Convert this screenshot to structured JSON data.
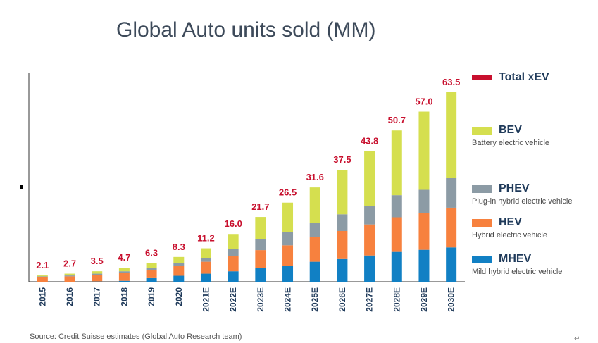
{
  "title": "Global Auto units sold (MM)",
  "source": "Source: Credit Suisse estimates (Global Auto Research team)",
  "return_mark": "↵",
  "legend": [
    {
      "name": "Total xEV",
      "desc": "",
      "color": "#c8102e"
    },
    {
      "name": "BEV",
      "desc": "Battery electric vehicle",
      "color": "#d5df4f"
    },
    {
      "name": "PHEV",
      "desc": "Plug-in hybrid electric vehicle",
      "color": "#8c9ba5"
    },
    {
      "name": "HEV",
      "desc": "Hybrid electric vehicle",
      "color": "#f7813e"
    },
    {
      "name": "MHEV",
      "desc": "Mild hybrid electric vehicle",
      "color": "#1180c4"
    }
  ],
  "chart_data": {
    "type": "bar",
    "stacked": true,
    "title": "Global Auto units sold (MM)",
    "categories": [
      "2015",
      "2016",
      "2017",
      "2018",
      "2019",
      "2020",
      "2021E",
      "2022E",
      "2023E",
      "2024E",
      "2025E",
      "2026E",
      "2027E",
      "2028E",
      "2029E",
      "2030E"
    ],
    "totals": [
      2.1,
      2.7,
      3.5,
      4.7,
      6.3,
      8.3,
      11.2,
      16.0,
      21.7,
      26.5,
      31.6,
      37.5,
      43.8,
      50.7,
      57.0,
      63.5
    ],
    "series": [
      {
        "name": "MHEV",
        "color": "#1180c4",
        "values": [
          0.0,
          0.0,
          0.1,
          0.3,
          1.2,
          2.0,
          2.7,
          3.5,
          4.6,
          5.4,
          6.7,
          7.6,
          8.8,
          10.0,
          10.7,
          11.5
        ]
      },
      {
        "name": "HEV",
        "color": "#f7813e",
        "values": [
          1.6,
          1.8,
          2.2,
          2.6,
          2.8,
          3.3,
          4.0,
          5.0,
          6.0,
          6.8,
          8.2,
          9.4,
          10.4,
          11.6,
          12.2,
          13.3
        ]
      },
      {
        "name": "PHEV",
        "color": "#8c9ba5",
        "values": [
          0.2,
          0.3,
          0.4,
          0.6,
          0.6,
          0.9,
          1.3,
          2.4,
          3.7,
          4.4,
          4.7,
          5.6,
          6.2,
          7.4,
          7.9,
          9.9
        ]
      },
      {
        "name": "BEV",
        "color": "#d5df4f",
        "values": [
          0.3,
          0.6,
          0.8,
          1.2,
          1.7,
          2.1,
          3.2,
          5.1,
          7.4,
          9.9,
          12.0,
          14.9,
          18.4,
          21.7,
          26.2,
          28.8
        ]
      }
    ],
    "ylim": [
      0,
      70
    ],
    "grid": false,
    "legend_position": "right"
  }
}
